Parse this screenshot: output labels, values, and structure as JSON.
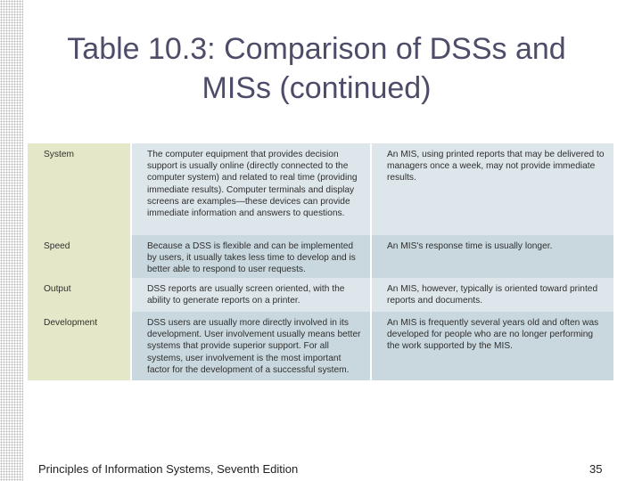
{
  "title": "Table 10.3: Comparison of DSSs and MISs (continued)",
  "rows": [
    {
      "label": "System",
      "dss": "The computer equipment that provides decision support is usually online (directly connected to the computer system) and related to real time (providing immediate results). Computer terminals and display screens are examples—these devices can provide immediate information and answers to questions.",
      "mis": "An MIS, using printed reports that may be delivered to managers once a week, may not provide immediate results."
    },
    {
      "label": "Speed",
      "dss": "Because a DSS is flexible and can be implemented by users, it usually takes less time to develop and is better able to respond to user requests.",
      "mis": "An MIS's response time is usually longer."
    },
    {
      "label": "Output",
      "dss": "DSS reports are usually screen oriented, with the ability to generate reports on a printer.",
      "mis": "An MIS, however, typically is oriented toward printed reports and documents."
    },
    {
      "label": "Development",
      "dss": "DSS users are usually more directly involved in its development. User involvement usually means better systems that provide superior support. For all systems, user involvement is the most important factor for the development of a successful system.",
      "mis": "An MIS is frequently several years old and often was developed for people who are no longer performing the work supported by the MIS."
    }
  ],
  "footer": {
    "source": "Principles of Information Systems, Seventh Edition",
    "page_number": "35"
  }
}
